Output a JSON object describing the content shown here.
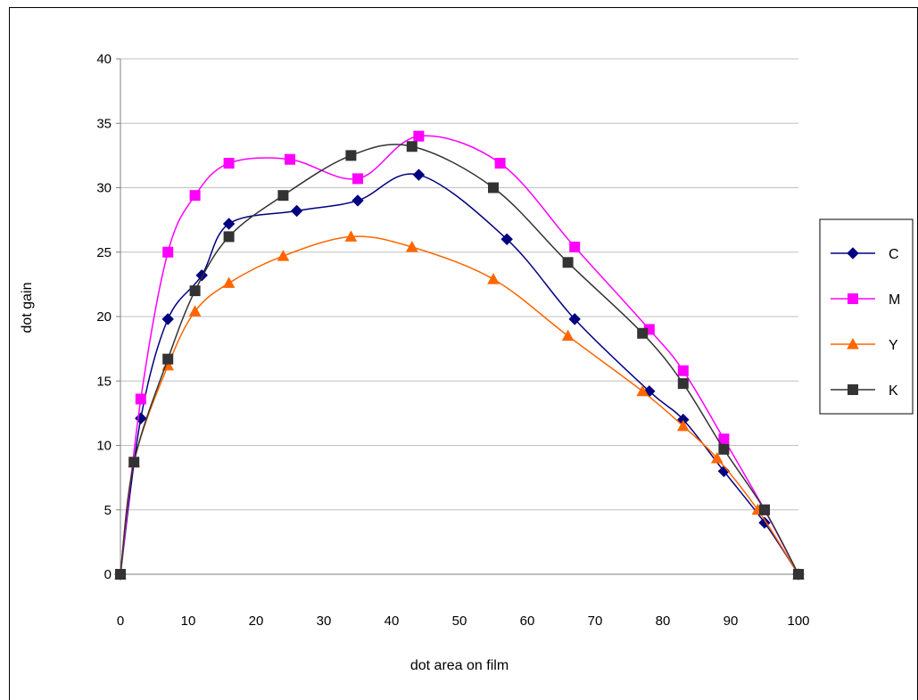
{
  "chart_data": {
    "type": "line",
    "xlabel": "dot area on film",
    "ylabel": "dot gain",
    "xlim": [
      0,
      100
    ],
    "ylim": [
      0,
      40
    ],
    "x_ticks": [
      "0",
      "10",
      "20",
      "30",
      "40",
      "50",
      "60",
      "70",
      "80",
      "90",
      "100"
    ],
    "y_ticks": [
      "0",
      "5",
      "10",
      "15",
      "20",
      "25",
      "30",
      "35",
      "40"
    ],
    "grid": "horizontal",
    "legend_position": "right",
    "smooth": true,
    "series": [
      {
        "name": "C",
        "color": "#000080",
        "marker": "diamond",
        "points": [
          [
            0,
            0
          ],
          [
            3,
            12.1
          ],
          [
            7,
            19.8
          ],
          [
            12,
            23.2
          ],
          [
            16,
            27.2
          ],
          [
            26,
            28.2
          ],
          [
            35,
            29
          ],
          [
            44,
            31
          ],
          [
            57,
            26
          ],
          [
            67,
            19.8
          ],
          [
            78,
            14.2
          ],
          [
            83,
            12
          ],
          [
            89,
            8
          ],
          [
            95,
            4
          ],
          [
            100,
            0
          ]
        ]
      },
      {
        "name": "M",
        "color": "#ff00ff",
        "marker": "square",
        "points": [
          [
            0,
            0
          ],
          [
            3,
            13.6
          ],
          [
            7,
            25
          ],
          [
            11,
            29.4
          ],
          [
            16,
            31.9
          ],
          [
            25,
            32.2
          ],
          [
            35,
            30.7
          ],
          [
            44,
            34
          ],
          [
            56,
            31.9
          ],
          [
            67,
            25.4
          ],
          [
            78,
            19
          ],
          [
            83,
            15.8
          ],
          [
            89,
            10.5
          ],
          [
            95,
            5
          ],
          [
            100,
            0
          ]
        ]
      },
      {
        "name": "Y",
        "color": "#ff6600",
        "marker": "triangle",
        "points": [
          [
            0,
            0
          ],
          [
            2,
            8.7
          ],
          [
            7,
            16.2
          ],
          [
            11,
            20.4
          ],
          [
            16,
            22.6
          ],
          [
            24,
            24.7
          ],
          [
            34,
            26.2
          ],
          [
            43,
            25.4
          ],
          [
            55,
            22.9
          ],
          [
            66,
            18.5
          ],
          [
            77,
            14.2
          ],
          [
            83,
            11.5
          ],
          [
            88,
            9
          ],
          [
            94,
            5
          ],
          [
            100,
            0
          ]
        ]
      },
      {
        "name": "K",
        "color": "#333333",
        "marker": "square",
        "points": [
          [
            0,
            0
          ],
          [
            2,
            8.7
          ],
          [
            7,
            16.7
          ],
          [
            11,
            22
          ],
          [
            16,
            26.2
          ],
          [
            24,
            29.4
          ],
          [
            34,
            32.5
          ],
          [
            43,
            33.2
          ],
          [
            55,
            30
          ],
          [
            66,
            24.2
          ],
          [
            77,
            18.7
          ],
          [
            83,
            14.8
          ],
          [
            89,
            9.7
          ],
          [
            95,
            5
          ],
          [
            100,
            0
          ]
        ]
      }
    ]
  }
}
